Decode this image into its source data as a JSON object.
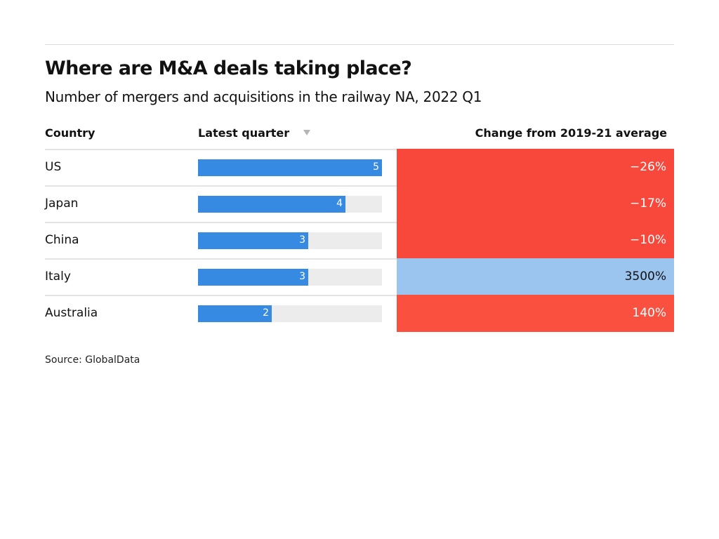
{
  "header": {
    "title": "Where are M&A deals taking place?",
    "subtitle": "Number of mergers and acquisitions in the railway NA, 2022 Q1"
  },
  "columns": {
    "country": "Country",
    "latest": "Latest quarter",
    "sort_icon": "sort-descending-triangle",
    "change": "Change from 2019-21 average"
  },
  "footer": {
    "source": "Source: GlobalData"
  },
  "colors": {
    "bar": "#378ae2",
    "track": "#ececec",
    "negative": "#f7483b",
    "positive_high": "#9bc4ef",
    "positive_mid": "#f9503f",
    "text_light": "#ffffff",
    "text_dark": "#111111"
  },
  "chart_data": {
    "type": "table",
    "title": "Where are M&A deals taking place?",
    "subtitle": "Number of mergers and acquisitions in the railway NA, 2022 Q1",
    "columns": [
      "Country",
      "Latest quarter",
      "Change from 2019-21 average"
    ],
    "max_value": 5,
    "rows": [
      {
        "country": "US",
        "value": 5,
        "value_label": "5",
        "change": -26,
        "change_label": "−26%",
        "cell_color": "#f7483b",
        "text_color": "#ffffff"
      },
      {
        "country": "Japan",
        "value": 4,
        "value_label": "4",
        "change": -17,
        "change_label": "−17%",
        "cell_color": "#f7483b",
        "text_color": "#ffffff"
      },
      {
        "country": "China",
        "value": 3,
        "value_label": "3",
        "change": -10,
        "change_label": "−10%",
        "cell_color": "#f7483b",
        "text_color": "#ffffff"
      },
      {
        "country": "Italy",
        "value": 3,
        "value_label": "3",
        "change": 3500,
        "change_label": "3500%",
        "cell_color": "#9bc4ef",
        "text_color": "#111111"
      },
      {
        "country": "Australia",
        "value": 2,
        "value_label": "2",
        "change": 140,
        "change_label": "140%",
        "cell_color": "#f9503f",
        "text_color": "#ffffff"
      }
    ]
  }
}
